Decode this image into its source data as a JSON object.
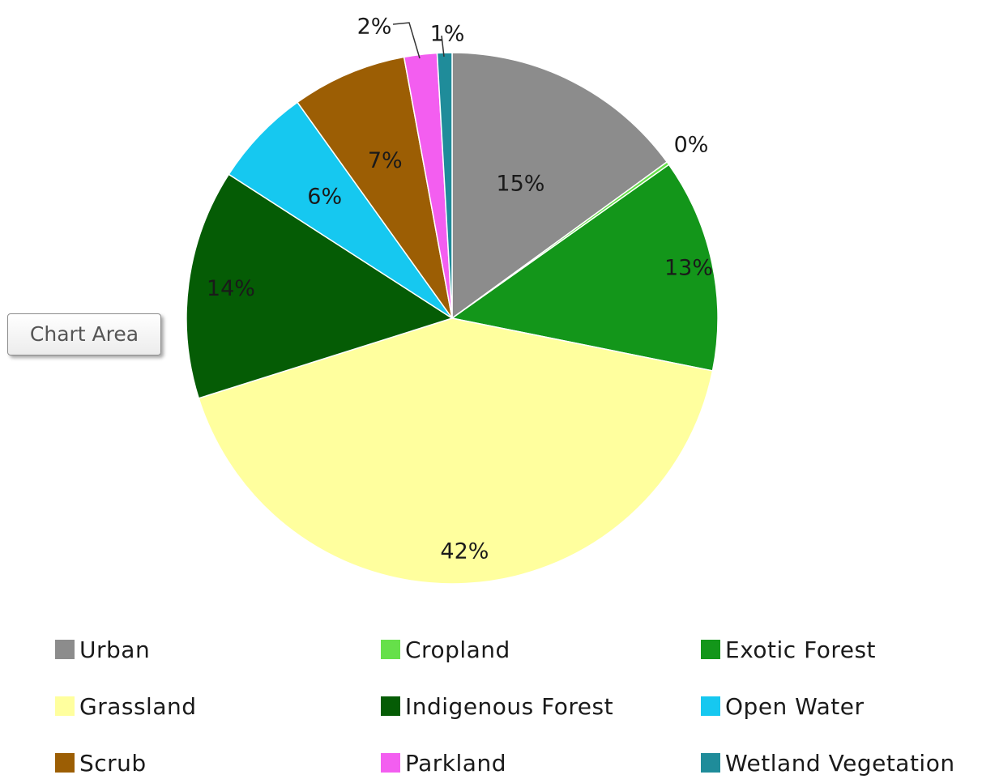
{
  "tooltip": {
    "text": "Chart Area"
  },
  "chart_data": {
    "type": "pie",
    "title": "",
    "slices": [
      {
        "name": "Urban",
        "label": "15%",
        "value": 15,
        "color": "#8c8c8c"
      },
      {
        "name": "Cropland",
        "label": "0%",
        "value": 0.2,
        "color": "#66e04a"
      },
      {
        "name": "Exotic Forest",
        "label": "13%",
        "value": 13,
        "color": "#13961a"
      },
      {
        "name": "Grassland",
        "label": "42%",
        "value": 42,
        "color": "#ffff9e"
      },
      {
        "name": "Indigenous Forest",
        "label": "14%",
        "value": 14,
        "color": "#055c05"
      },
      {
        "name": "Open Water",
        "label": "6%",
        "value": 6,
        "color": "#16c8f0"
      },
      {
        "name": "Scrub",
        "label": "7%",
        "value": 7,
        "color": "#9c5e04"
      },
      {
        "name": "Parkland",
        "label": "2%",
        "value": 2,
        "color": "#f35ef0"
      },
      {
        "name": "Wetland Vegetation",
        "label": "1%",
        "value": 0.9,
        "color": "#1f8c9a"
      }
    ],
    "legend_position": "bottom"
  }
}
